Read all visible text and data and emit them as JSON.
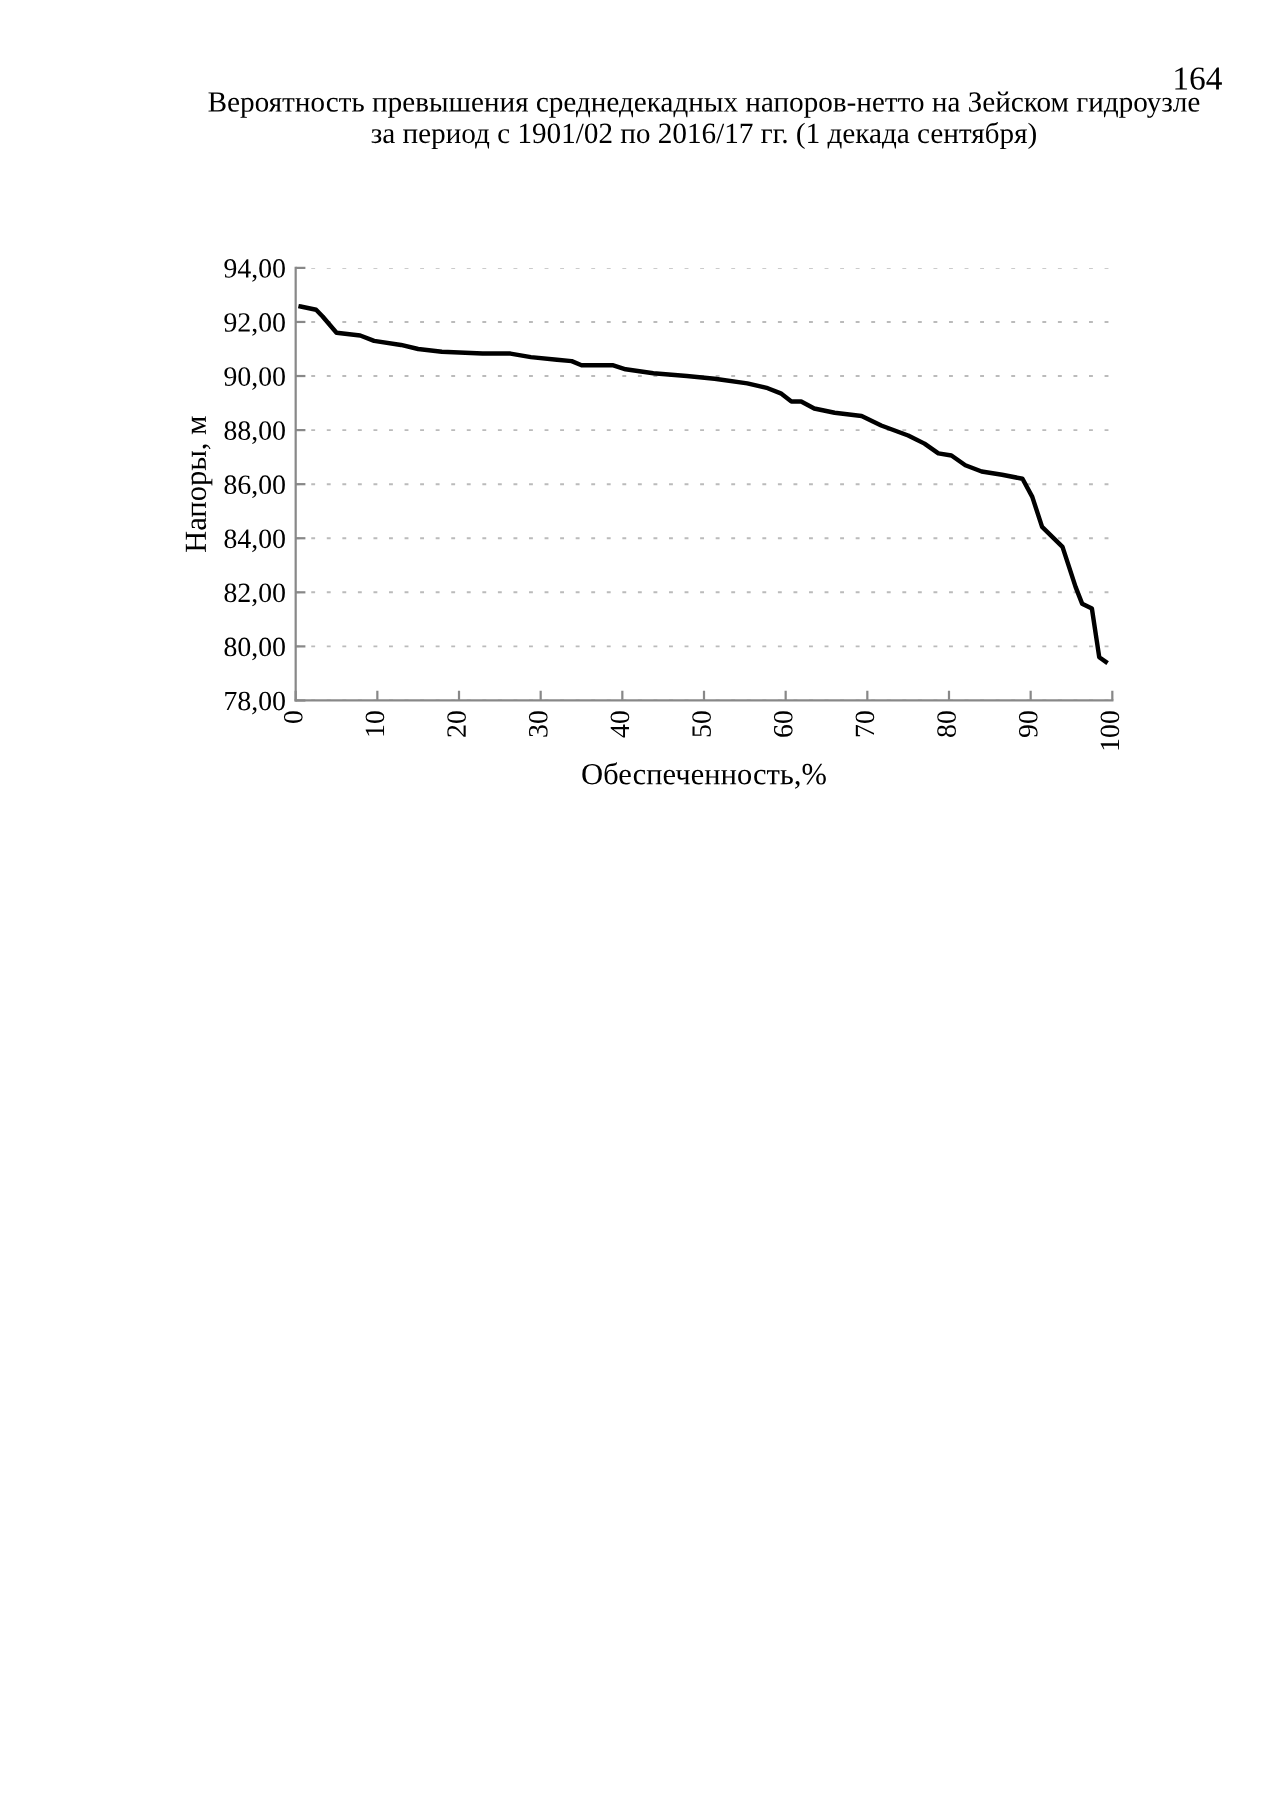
{
  "chart_data": {
    "type": "line",
    "title": "Вероятность превышения среднедекадных напоров-нетто на Зейском гидроузле\nза период с 1901/02 по 2016/17 гг. (1 декада сентября)",
    "xlabel": "Обеспеченность,%",
    "ylabel": "Напоры, м",
    "annotations": [
      "164"
    ],
    "series": [
      {
        "color": "#000000",
        "x": [
          0.6,
          2.5,
          3.3,
          5,
          7.9,
          9.6,
          12.9,
          15,
          17.9,
          22.9,
          26.3,
          28.8,
          32,
          33.8,
          35,
          38.8,
          40.4,
          43.8,
          47.9,
          51.3,
          55.3,
          57.8,
          59.4,
          60.7,
          61.9,
          63.5,
          66,
          69.3,
          71.7,
          75,
          77,
          78.7,
          80.3,
          82,
          84,
          86.5,
          89,
          90.2,
          91.4,
          93.9,
          95.5,
          96.3,
          97.5,
          98.1,
          98.4,
          99.2
        ],
        "values": [
          92.57,
          92.45,
          92.2,
          91.6,
          91.5,
          91.3,
          91.15,
          91.0,
          90.9,
          90.83,
          90.83,
          90.7,
          90.6,
          90.55,
          90.4,
          90.4,
          90.25,
          90.1,
          90.0,
          89.9,
          89.73,
          89.55,
          89.36,
          89.06,
          89.06,
          88.8,
          88.64,
          88.52,
          88.17,
          87.8,
          87.5,
          87.14,
          87.06,
          86.7,
          86.47,
          86.35,
          86.2,
          85.53,
          84.42,
          83.68,
          82.2,
          81.58,
          81.4,
          80.2,
          79.6,
          79.43
        ]
      }
    ],
    "xlim": [
      0,
      100
    ],
    "xticks": [
      0,
      10,
      20,
      30,
      40,
      50,
      60,
      70,
      80,
      90,
      100
    ],
    "ylim": [
      78,
      94
    ],
    "yticks": [
      {
        "value": 78,
        "label": "78,00"
      },
      {
        "value": 80,
        "label": "80,00"
      },
      {
        "value": 82,
        "label": "82,00"
      },
      {
        "value": 84,
        "label": "84,00"
      },
      {
        "value": 86,
        "label": "86,00"
      },
      {
        "value": 88,
        "label": "88,00"
      },
      {
        "value": 90,
        "label": "90,00"
      },
      {
        "value": 92,
        "label": "92,00"
      },
      {
        "value": 94,
        "label": "94,00"
      }
    ],
    "grid": "y",
    "marker": "none",
    "line_style": "solid"
  }
}
